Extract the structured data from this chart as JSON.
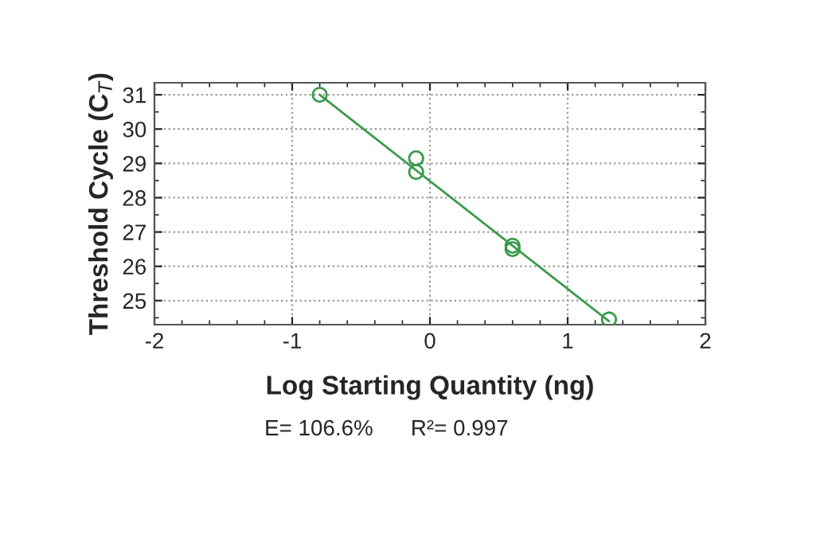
{
  "chart_data": {
    "type": "scatter",
    "xlabel": "Log Starting Quantity (ng)",
    "ylabel": "Threshold Cycle (C$_{T}$)",
    "series": [
      {
        "color": "#3a9a4a",
        "x": [
          -0.8,
          -0.1,
          -0.1,
          0.6,
          0.6,
          1.3
        ],
        "values": [
          31.0,
          29.15,
          28.75,
          26.6,
          26.5,
          24.45
        ],
        "marker": "circle"
      },
      {
        "type": "line",
        "color": "#3a9a4a",
        "x": [
          -0.8,
          1.3
        ],
        "values": [
          31.0,
          24.4
        ],
        "marker": "none"
      }
    ],
    "xlim": [
      -2,
      2
    ],
    "xticks": [
      -2,
      -1,
      0,
      1,
      2
    ],
    "ylim": [
      24.3,
      31.35
    ],
    "yticks": [
      25,
      26,
      27,
      28,
      29,
      30,
      31
    ],
    "grid": true,
    "annotations": [
      "E= 106.6%",
      "R²= 0.997"
    ]
  }
}
